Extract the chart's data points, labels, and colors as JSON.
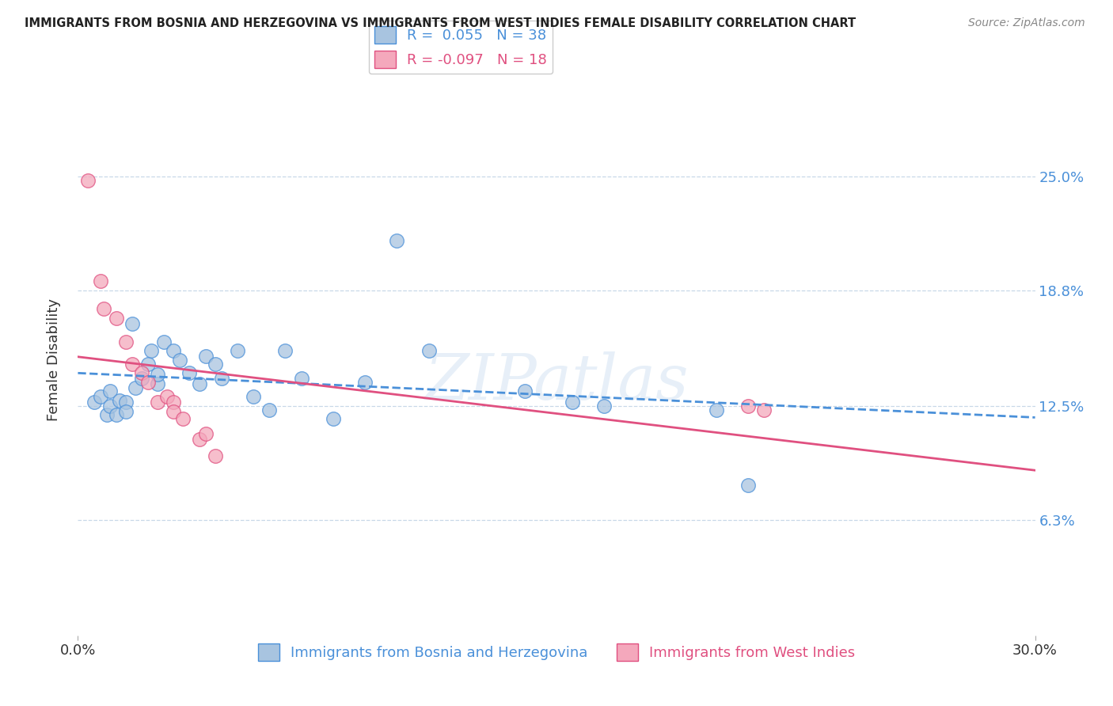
{
  "title": "IMMIGRANTS FROM BOSNIA AND HERZEGOVINA VS IMMIGRANTS FROM WEST INDIES FEMALE DISABILITY CORRELATION CHART",
  "source": "Source: ZipAtlas.com",
  "xlabel_bosnia": "Immigrants from Bosnia and Herzegovina",
  "xlabel_west_indies": "Immigrants from West Indies",
  "ylabel": "Female Disability",
  "xlim": [
    0.0,
    0.3
  ],
  "ylim": [
    0.0,
    0.3
  ],
  "yticks": [
    0.063,
    0.125,
    0.188,
    0.25
  ],
  "ytick_labels": [
    "6.3%",
    "12.5%",
    "18.8%",
    "25.0%"
  ],
  "r_bosnia": 0.055,
  "n_bosnia": 38,
  "r_west_indies": -0.097,
  "n_west_indies": 18,
  "color_bosnia": "#a8c4e0",
  "color_west_indies": "#f4a8bc",
  "trendline_color_bosnia": "#4a90d9",
  "trendline_color_west_indies": "#e05080",
  "bosnia_x": [
    0.005,
    0.007,
    0.009,
    0.01,
    0.01,
    0.012,
    0.013,
    0.015,
    0.015,
    0.017,
    0.018,
    0.02,
    0.022,
    0.023,
    0.025,
    0.025,
    0.027,
    0.03,
    0.032,
    0.035,
    0.038,
    0.04,
    0.043,
    0.045,
    0.05,
    0.055,
    0.06,
    0.065,
    0.07,
    0.08,
    0.09,
    0.1,
    0.11,
    0.14,
    0.155,
    0.165,
    0.2,
    0.21
  ],
  "bosnia_y": [
    0.127,
    0.13,
    0.12,
    0.125,
    0.133,
    0.12,
    0.128,
    0.127,
    0.122,
    0.17,
    0.135,
    0.14,
    0.148,
    0.155,
    0.137,
    0.142,
    0.16,
    0.155,
    0.15,
    0.143,
    0.137,
    0.152,
    0.148,
    0.14,
    0.155,
    0.13,
    0.123,
    0.155,
    0.14,
    0.118,
    0.138,
    0.215,
    0.155,
    0.133,
    0.127,
    0.125,
    0.123,
    0.082
  ],
  "west_indies_x": [
    0.003,
    0.007,
    0.008,
    0.012,
    0.015,
    0.017,
    0.02,
    0.022,
    0.025,
    0.028,
    0.03,
    0.03,
    0.033,
    0.038,
    0.04,
    0.043,
    0.21,
    0.215
  ],
  "west_indies_y": [
    0.248,
    0.193,
    0.178,
    0.173,
    0.16,
    0.148,
    0.143,
    0.138,
    0.127,
    0.13,
    0.127,
    0.122,
    0.118,
    0.107,
    0.11,
    0.098,
    0.125,
    0.123
  ],
  "watermark": "ZIPatlas",
  "background_color": "#ffffff",
  "grid_color": "#c8d8e8"
}
